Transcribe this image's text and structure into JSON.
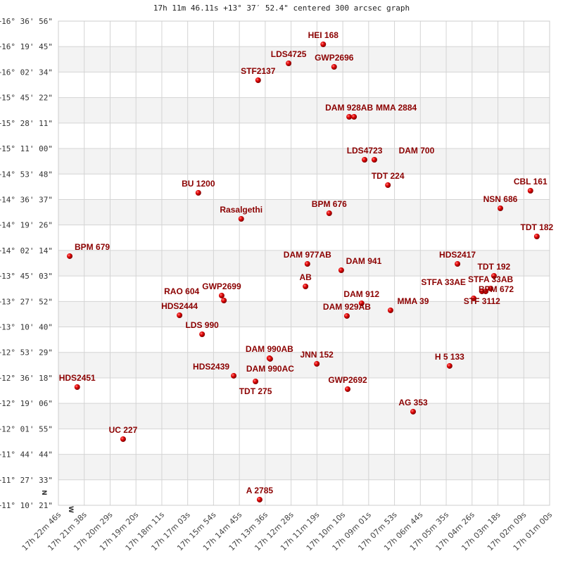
{
  "chart_data": {
    "type": "scatter",
    "title": "17h 11m 46.11s +13° 37′ 52.4\" centered 300 arcsec graph",
    "xlabel": "",
    "ylabel": "",
    "x_axis": "right ascension (decreasing to the right)",
    "xlim": [
      "17h 22m 46s",
      "17h 01m 00s"
    ],
    "ylim": [
      "+11° 10' 21\"",
      "+16° 36' 56\""
    ],
    "grid": true,
    "x_ticks": [
      "17h 22m 46s",
      "17h 21m 38s",
      "17h 20m 29s",
      "17h 19m 20s",
      "17h 18m 11s",
      "17h 17m 03s",
      "17h 15m 54s",
      "17h 14m 45s",
      "17h 13m 36s",
      "17h 12m 28s",
      "17h 11m 19s",
      "17h 10m 10s",
      "17h 09m 01s",
      "17h 07m 53s",
      "17h 06m 44s",
      "17h 05m 35s",
      "17h 04m 26s",
      "17h 03m 18s",
      "17h 02m 09s",
      "17h 01m 00s"
    ],
    "y_ticks": [
      "+16° 36' 56\"",
      "+16° 19' 45\"",
      "+16° 02' 34\"",
      "+15° 45' 22\"",
      "+15° 28' 11\"",
      "+15° 11' 00\"",
      "+14° 53' 48\"",
      "+14° 36' 37\"",
      "+14° 19' 26\"",
      "+14° 02' 14\"",
      "+13° 45' 03\"",
      "+13° 27' 52\"",
      "+13° 10' 40\"",
      "+12° 53' 29\"",
      "+12° 36' 18\"",
      "+12° 19' 06\"",
      "+12° 01' 55\"",
      "+11° 44' 44\"",
      "+11° 27' 33\"",
      "+11° 10' 21\""
    ],
    "compass": {
      "north": "N",
      "west": "W"
    },
    "marker_color": "#dd0000",
    "label_color": "#8b0000",
    "points": [
      {
        "name": "HEI 168",
        "ra": "17h 11m 02s",
        "dec": "+16° 21' 16\""
      },
      {
        "name": "LDS4725",
        "ra": "17h 12m 34s",
        "dec": "+16° 08' 27\""
      },
      {
        "name": "GWP2696",
        "ra": "17h 10m 33s",
        "dec": "+16° 06' 05\""
      },
      {
        "name": "STF2137",
        "ra": "17h 13m 55s",
        "dec": "+15° 57' 04\""
      },
      {
        "name": "DAM 928AB",
        "ra": "17h 09m 53s",
        "dec": "+15° 32' 23\""
      },
      {
        "name": "MMA 2884",
        "ra": "17h 09m 40s",
        "dec": "+15° 32' 23\""
      },
      {
        "name": "LDS4723",
        "ra": "17h 09m 12s",
        "dec": "+15° 03' 25\""
      },
      {
        "name": "DAM 700",
        "ra": "17h 08m 46s",
        "dec": "+15° 03' 25\""
      },
      {
        "name": "TDT 224",
        "ra": "17h 08m 10s",
        "dec": "+14° 46' 20\""
      },
      {
        "name": "CBL 161",
        "ra": "17h 01m 51s",
        "dec": "+14° 42' 32\""
      },
      {
        "name": "NSN 686",
        "ra": "17h 03m 11s",
        "dec": "+14° 30' 40\""
      },
      {
        "name": "BPM 676",
        "ra": "17h 10m 46s",
        "dec": "+14° 27' 21\""
      },
      {
        "name": "BU 1200",
        "ra": "17h 16m 34s",
        "dec": "+14° 41' 07\""
      },
      {
        "name": "Rasalgethi",
        "ra": "17h 14m 40s",
        "dec": "+14° 23' 33\""
      },
      {
        "name": "TDT 182",
        "ra": "17h 01m 34s",
        "dec": "+14° 11' 41\""
      },
      {
        "name": "BPM 679",
        "ra": "17h 22m 16s",
        "dec": "+13° 58' 24\""
      },
      {
        "name": "DAM 977AB",
        "ra": "17h 11m 44s",
        "dec": "+13° 53' 10\""
      },
      {
        "name": "HDS2417",
        "ra": "17h 05m 05s",
        "dec": "+13° 53' 10\""
      },
      {
        "name": "DAM 941",
        "ra": "17h 10m 14s",
        "dec": "+13° 48' 54\""
      },
      {
        "name": "TDT 192",
        "ra": "17h 03m 28s",
        "dec": "+13° 45' 06\""
      },
      {
        "name": "AB",
        "ra": "17h 11m 49s",
        "dec": "+13° 37' 59\""
      },
      {
        "name": "STFA 33AB",
        "ra": "17h 03m 37s",
        "dec": "+13° 36' 34\""
      },
      {
        "name": "STFA 33AE",
        "ra": "17h 03m 50s",
        "dec": "+13° 34' 40\""
      },
      {
        "name": "STF 3112",
        "ra": "17h 04m 00s",
        "dec": "+13° 34' 40\""
      },
      {
        "name": "BPM 672",
        "ra": "17h 04m 22s",
        "dec": "+13° 29' 55\""
      },
      {
        "name": "GWP2699",
        "ra": "17h 15m 32s",
        "dec": "+13° 31' 49\""
      },
      {
        "name": "RAO 604",
        "ra": "17h 15m 26s",
        "dec": "+13° 28' 29\""
      },
      {
        "name": "DAM 912",
        "ra": "17h 09m 20s",
        "dec": "+13° 26' 36\""
      },
      {
        "name": "MMA  39",
        "ra": "17h 08m 03s",
        "dec": "+13° 21' 51\""
      },
      {
        "name": "DAM 929AB",
        "ra": "17h 09m 59s",
        "dec": "+13° 18' 03\""
      },
      {
        "name": "HDS2444",
        "ra": "17h 17m 24s",
        "dec": "+13° 18' 31\""
      },
      {
        "name": "LDS 990",
        "ra": "17h 16m 24s",
        "dec": "+13° 05' 42\""
      },
      {
        "name": "DAM 990AB",
        "ra": "17h 13m 25s",
        "dec": "+12° 49' 34\""
      },
      {
        "name": "DAM 990AC",
        "ra": "17h 13m 23s",
        "dec": "+12° 49' 06\""
      },
      {
        "name": "JNN 152",
        "ra": "17h 11m 19s",
        "dec": "+12° 45' 46\""
      },
      {
        "name": "H 5 133",
        "ra": "17h 05m 26s",
        "dec": "+12° 44' 21\""
      },
      {
        "name": "HDS2439",
        "ra": "17h 15m 00s",
        "dec": "+12° 37' 42\""
      },
      {
        "name": "TDT 275",
        "ra": "17h 14m 02s",
        "dec": "+12° 33' 54\""
      },
      {
        "name": "HDS2451",
        "ra": "17h 21m 56s",
        "dec": "+12° 30' 06\""
      },
      {
        "name": "GWP2692",
        "ra": "17h 09m 57s",
        "dec": "+12° 28' 41\""
      },
      {
        "name": "AG  353",
        "ra": "17h 07m 03s",
        "dec": "+12° 13' 30\""
      },
      {
        "name": "UC  227",
        "ra": "17h 19m 54s",
        "dec": "+11° 54' 59\""
      },
      {
        "name": "A  2785",
        "ra": "17h 13m 51s",
        "dec": "+11° 14' 10\""
      }
    ]
  }
}
